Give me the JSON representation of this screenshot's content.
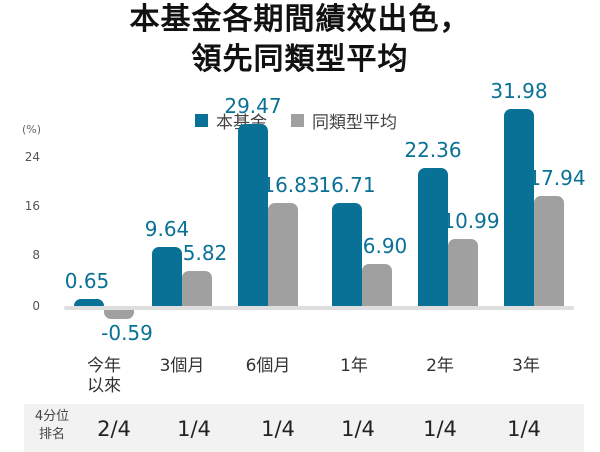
{
  "title": {
    "line1": "本基金各期間績效出色，",
    "line2": "領先同類型平均"
  },
  "legend": [
    {
      "label": "本基金",
      "color": "#0a7196"
    },
    {
      "label": "同類型平均",
      "color": "#a0a0a0"
    }
  ],
  "axis": {
    "unit": "(%)",
    "ticks": [
      "24",
      "16",
      "8",
      "0"
    ]
  },
  "categories": [
    {
      "label_line1": "今年",
      "label_line2": "以來"
    },
    {
      "label_line1": "3個月",
      "label_line2": ""
    },
    {
      "label_line1": "6個月",
      "label_line2": ""
    },
    {
      "label_line1": "1年",
      "label_line2": ""
    },
    {
      "label_line1": "2年",
      "label_line2": ""
    },
    {
      "label_line1": "3年",
      "label_line2": ""
    }
  ],
  "fund_values": [
    "0.65",
    "9.64",
    "29.47",
    "16.71",
    "22.36",
    "31.98"
  ],
  "peer_values": [
    "-0.59",
    "5.82",
    "16.83",
    "6.90",
    "10.99",
    "17.94"
  ],
  "ranking": {
    "label_line1": "4分位",
    "label_line2": "排名",
    "values": [
      "2/4",
      "1/4",
      "1/4",
      "1/4",
      "1/4",
      "1/4"
    ]
  },
  "colors": {
    "fund": "#0a7196",
    "peer": "#a0a0a0",
    "value_label": "#0a7196",
    "rank_bg": "#f2f2f2"
  },
  "chart_data": {
    "type": "bar",
    "title": "本基金各期間績效出色，領先同類型平均",
    "categories": [
      "今年以來",
      "3個月",
      "6個月",
      "1年",
      "2年",
      "3年"
    ],
    "series": [
      {
        "name": "本基金",
        "values": [
          0.65,
          9.64,
          29.47,
          16.71,
          22.36,
          31.98
        ]
      },
      {
        "name": "同類型平均",
        "values": [
          -0.59,
          5.82,
          16.83,
          6.9,
          10.99,
          17.94
        ]
      }
    ],
    "xlabel": "",
    "ylabel": "(%)",
    "yticks": [
      0,
      8,
      16,
      24
    ],
    "grid": false,
    "legend_position": "top",
    "annotations": {
      "row_label": "4分位排名",
      "quartile_rank": [
        "2/4",
        "1/4",
        "1/4",
        "1/4",
        "1/4",
        "1/4"
      ]
    }
  }
}
